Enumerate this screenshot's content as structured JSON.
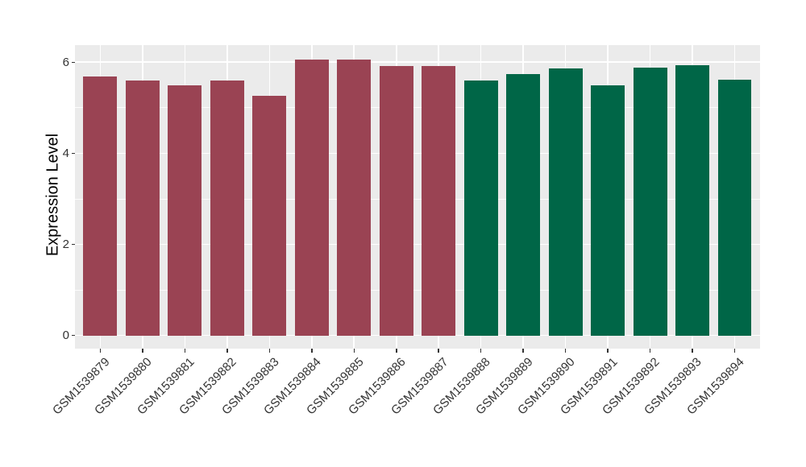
{
  "chart_data": {
    "type": "bar",
    "title": "",
    "xlabel": "",
    "ylabel": "Expression Level",
    "categories": [
      "GSM1539879",
      "GSM1539880",
      "GSM1539881",
      "GSM1539882",
      "GSM1539883",
      "GSM1539884",
      "GSM1539885",
      "GSM1539886",
      "GSM1539887",
      "GSM1539888",
      "GSM1539889",
      "GSM1539890",
      "GSM1539891",
      "GSM1539892",
      "GSM1539893",
      "GSM1539894"
    ],
    "values": [
      5.69,
      5.6,
      5.5,
      5.6,
      5.26,
      6.05,
      6.06,
      5.92,
      5.92,
      5.6,
      5.74,
      5.87,
      5.5,
      5.88,
      5.93,
      5.61
    ],
    "bar_groups": [
      "groupA",
      "groupA",
      "groupA",
      "groupA",
      "groupA",
      "groupA",
      "groupA",
      "groupA",
      "groupA",
      "groupB",
      "groupB",
      "groupB",
      "groupB",
      "groupB",
      "groupB",
      "groupB"
    ],
    "group_colors": {
      "groupA": "#9A4353",
      "groupB": "#006647"
    },
    "yticks": [
      0,
      2,
      4,
      6
    ],
    "yticks_minor": [
      1,
      3,
      5
    ],
    "ylim": [
      0,
      6.38
    ],
    "x_label_rotation": 45,
    "grid": true,
    "legend": "none",
    "panel_bg": "#EBEBEB",
    "grid_color": "#FFFFFF",
    "tick_color": "#333333",
    "axis_text_color": "#333333",
    "axis_title_color": "#000000"
  }
}
